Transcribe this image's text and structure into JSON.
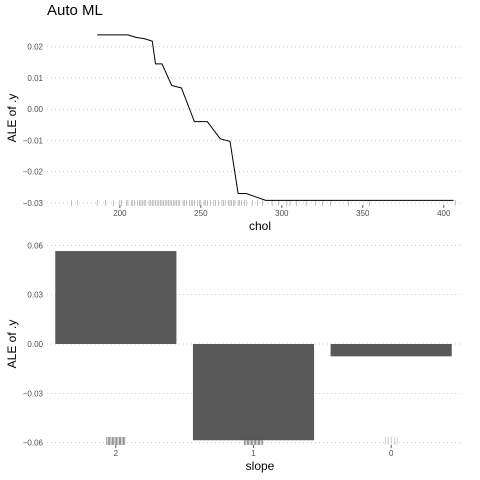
{
  "title": "Auto ML",
  "chart_data": [
    {
      "type": "line",
      "xlabel": "chol",
      "ylabel": "ALE of .y",
      "xlim": [
        155,
        410
      ],
      "ylim": [
        -0.031,
        0.026
      ],
      "xticks": [
        200,
        250,
        300,
        350,
        400
      ],
      "xtick_labels": [
        "200",
        "250",
        "300",
        "350",
        "400"
      ],
      "yticks": [
        0.02,
        0.01,
        0.0,
        -0.01,
        -0.02,
        -0.03
      ],
      "ytick_labels": [
        "0.02",
        "0.01",
        "0.00",
        "−0.01",
        "−0.02",
        "−0.03"
      ],
      "grid": "horizontal-dotted",
      "series": [
        {
          "x": [
            186,
            190,
            195,
            200,
            205,
            210,
            215,
            220,
            222,
            226,
            232,
            238,
            246,
            254,
            262,
            268,
            273,
            278,
            290,
            300,
            320,
            340,
            360,
            380,
            400,
            406
          ],
          "y": [
            0.0238,
            0.0238,
            0.0238,
            0.0238,
            0.0238,
            0.023,
            0.0226,
            0.0218,
            0.0145,
            0.0145,
            0.0076,
            0.0068,
            -0.004,
            -0.004,
            -0.0095,
            -0.0103,
            -0.027,
            -0.027,
            -0.0292,
            -0.0292,
            -0.0292,
            -0.0292,
            -0.0292,
            -0.0292,
            -0.0292,
            -0.0292
          ]
        }
      ],
      "rug_x": [
        170,
        174,
        186,
        191,
        196,
        200,
        201,
        204,
        205,
        207,
        208,
        209,
        211,
        212,
        213,
        214,
        215,
        216,
        218,
        219,
        220,
        221,
        222,
        223,
        224,
        225,
        226,
        227,
        228,
        229,
        230,
        231,
        232,
        233,
        234,
        235,
        236,
        237,
        239,
        240,
        241,
        243,
        244,
        245,
        246,
        248,
        249,
        250,
        252,
        253,
        254,
        256,
        258,
        259,
        261,
        263,
        264,
        265,
        267,
        268,
        269,
        270,
        271,
        273,
        274,
        275,
        277,
        278,
        282,
        285,
        288,
        294,
        298,
        303,
        305,
        309,
        315,
        321,
        325,
        330,
        341,
        354,
        407
      ]
    },
    {
      "type": "bar",
      "xlabel": "slope",
      "ylabel": "ALE of .y",
      "categories": [
        "2",
        "1",
        "0"
      ],
      "values": [
        0.0565,
        -0.0585,
        -0.0075
      ],
      "ylim": [
        -0.062,
        0.062
      ],
      "yticks": [
        0.06,
        0.03,
        0.0,
        -0.03,
        -0.06
      ],
      "ytick_labels": [
        "0.06",
        "0.03",
        "0.00",
        "−0.03",
        "−0.06"
      ],
      "grid": "horizontal-dotted",
      "bar_color": "#595959",
      "rug_counts": [
        14,
        14,
        5
      ]
    }
  ]
}
